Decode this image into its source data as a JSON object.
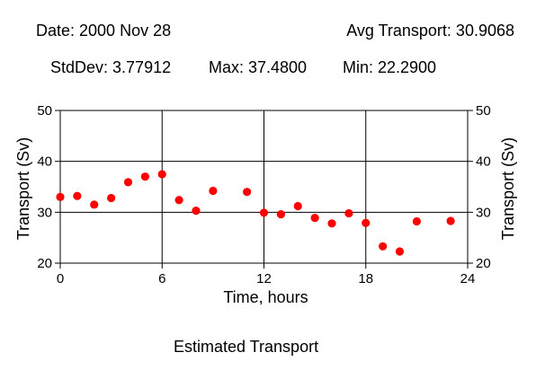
{
  "header": {
    "date": "Date: 2000 Nov 28",
    "avg": "Avg Transport: 30.9068",
    "stddev": "StdDev: 3.77912",
    "max": "Max: 37.4800",
    "min": "Min: 22.2900"
  },
  "caption": "Estimated Transport",
  "colors": {
    "marker": "#ff0000",
    "axis": "#000000",
    "background": "#ffffff"
  },
  "chart_data": {
    "type": "scatter",
    "title": "",
    "xlabel": "Time, hours",
    "ylabel": "Transport (Sv)",
    "xlim": [
      0,
      24
    ],
    "ylim": [
      20,
      50
    ],
    "xticks": [
      0,
      6,
      12,
      18,
      24
    ],
    "yticks": [
      20,
      30,
      40,
      50
    ],
    "grid": true,
    "x": [
      0,
      1,
      2,
      3,
      4,
      5,
      6,
      7,
      8,
      9,
      11,
      12,
      13,
      14,
      15,
      16,
      17,
      18,
      19,
      20,
      21,
      23
    ],
    "y": [
      33.0,
      33.2,
      31.5,
      32.8,
      35.9,
      37.0,
      37.48,
      32.4,
      30.3,
      34.2,
      34.0,
      29.9,
      29.6,
      31.2,
      28.9,
      27.8,
      29.8,
      27.9,
      23.3,
      22.29,
      28.2,
      28.3
    ]
  }
}
